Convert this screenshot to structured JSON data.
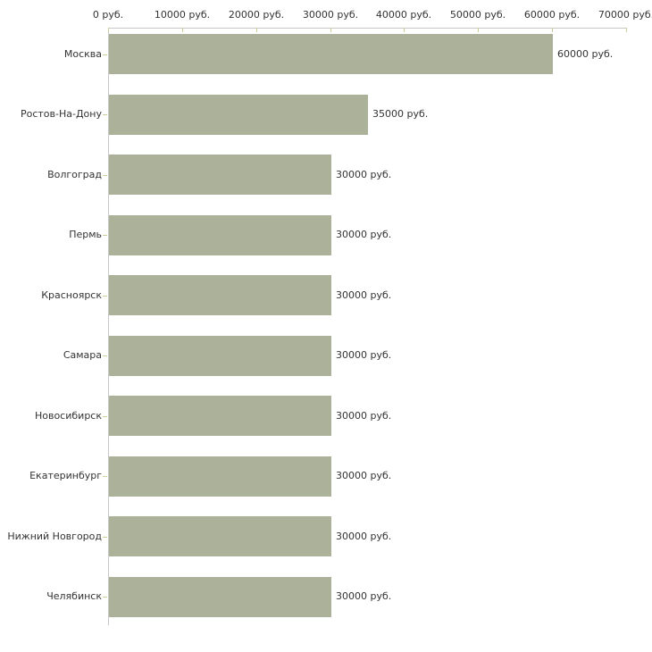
{
  "chart_data": {
    "type": "bar",
    "orientation": "horizontal",
    "title": "",
    "categories": [
      "Москва",
      "Ростов-На-Дону",
      "Волгоград",
      "Пермь",
      "Красноярск",
      "Самара",
      "Новосибирск",
      "Екатеринбург",
      "Нижний Новгород",
      "Челябинск"
    ],
    "values": [
      60000,
      35000,
      30000,
      30000,
      30000,
      30000,
      30000,
      30000,
      30000,
      30000
    ],
    "value_labels": [
      "60000 руб.",
      "35000 руб.",
      "30000 руб.",
      "30000 руб.",
      "30000 руб.",
      "30000 руб.",
      "30000 руб.",
      "30000 руб.",
      "30000 руб.",
      "30000 руб."
    ],
    "unit": "руб.",
    "x_axis": {
      "position": "top",
      "min": 0,
      "max": 70000,
      "ticks": [
        0,
        10000,
        20000,
        30000,
        40000,
        50000,
        60000,
        70000
      ],
      "tick_labels": [
        "0 руб.",
        "10000 руб.",
        "20000 руб.",
        "30000 руб.",
        "40000 руб.",
        "50000 руб.",
        "60000 руб.",
        "70000 руб."
      ]
    },
    "legend": false,
    "grid": false,
    "colors": {
      "bar": "#abb299",
      "axis_line": "#c8c8c8",
      "tick_mark": "#cccc99",
      "text": "#333333",
      "background": "#ffffff"
    }
  }
}
